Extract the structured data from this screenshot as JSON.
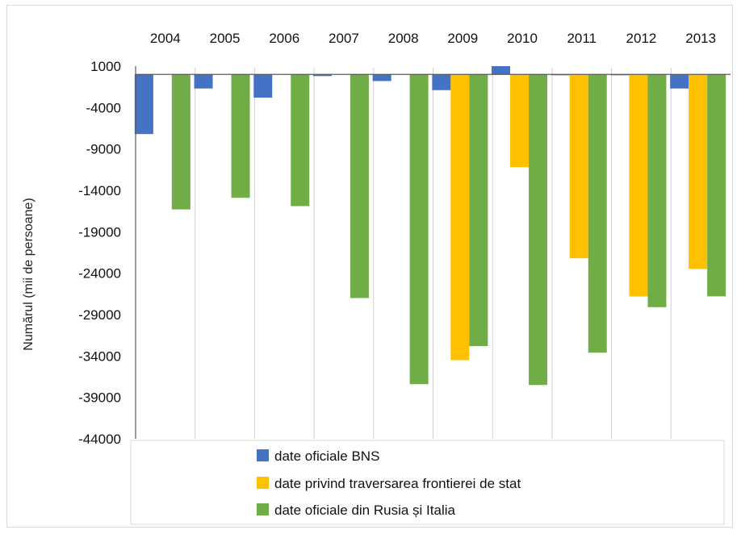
{
  "chart_data": {
    "type": "bar",
    "title": "",
    "xlabel": "",
    "ylabel": "Numărul (mii de persoane)",
    "categories": [
      "2004",
      "2005",
      "2006",
      "2007",
      "2008",
      "2009",
      "2010",
      "2011",
      "2012",
      "2013"
    ],
    "ylim": [
      -44000,
      1000
    ],
    "yticks": [
      1000,
      -4000,
      -9000,
      -14000,
      -19000,
      -24000,
      -29000,
      -34000,
      -39000,
      -44000
    ],
    "grid": "vertical category separators",
    "legend_position": "bottom",
    "series": [
      {
        "name": "date oficiale BNS",
        "color": "#4472C4",
        "values": [
          -7200,
          -1700,
          -2800,
          -200,
          -800,
          -1900,
          1000,
          -100,
          -100,
          -1700
        ]
      },
      {
        "name": "date privind traversarea frontierei de stat",
        "color": "#FFC000",
        "values": [
          null,
          null,
          null,
          null,
          null,
          -34500,
          -11200,
          -22200,
          -26800,
          -23500
        ]
      },
      {
        "name": "date oficiale din Rusia și Italia",
        "color": "#70AD47",
        "values": [
          -16300,
          -14900,
          -15900,
          -27000,
          -37400,
          -32800,
          -37500,
          -33600,
          -28100,
          -26800
        ]
      }
    ]
  }
}
